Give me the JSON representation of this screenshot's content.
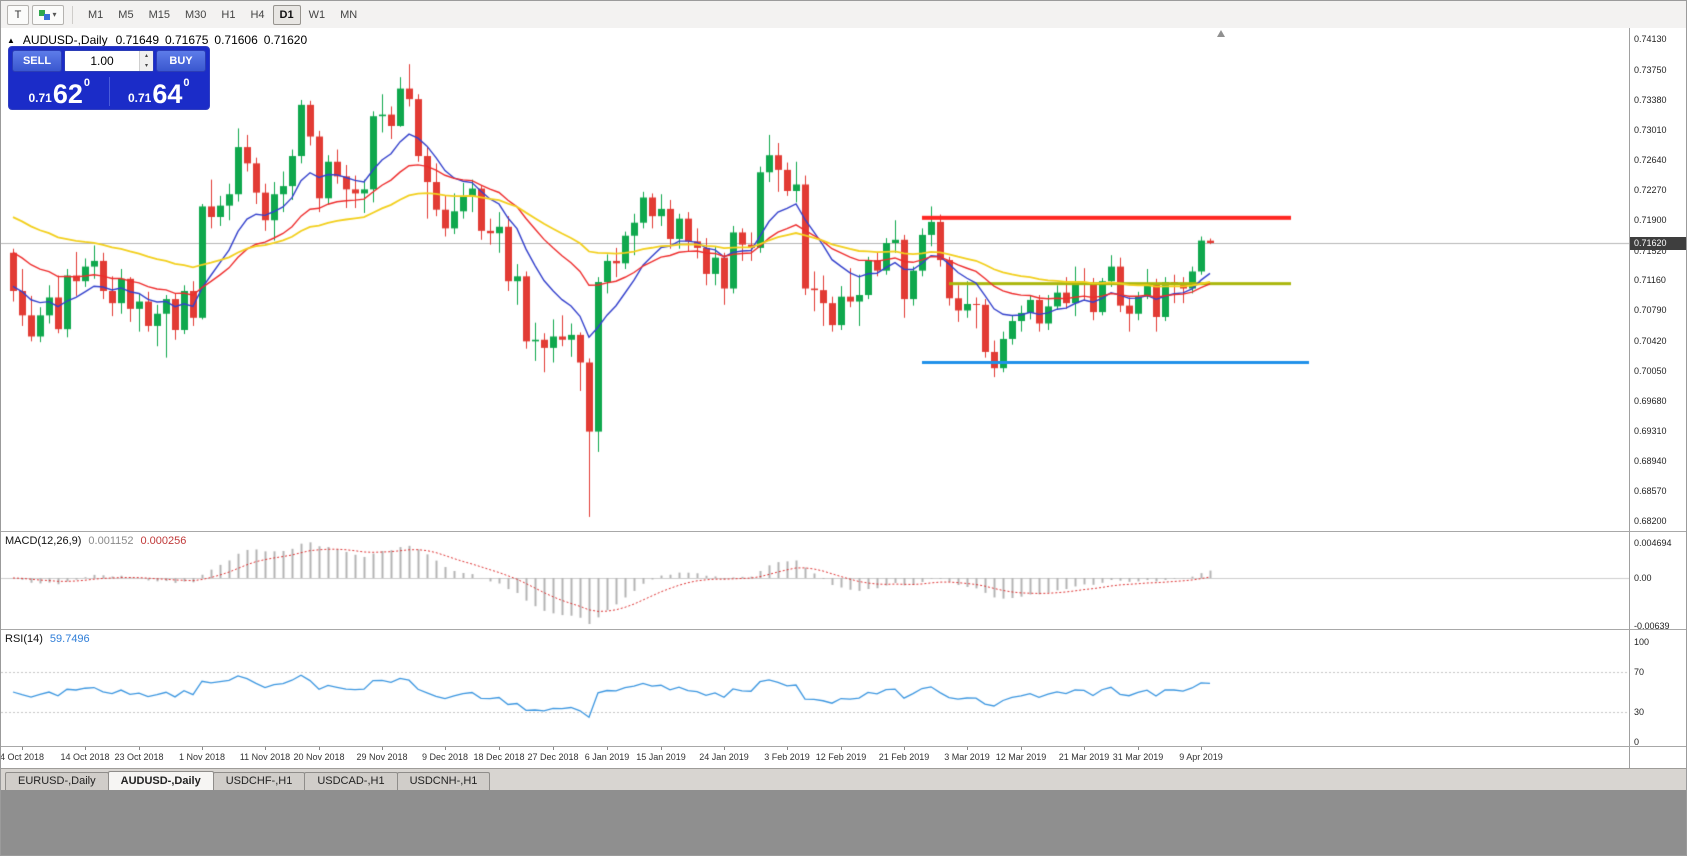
{
  "toolbar": {
    "tool_t": "T",
    "timeframes": [
      "M1",
      "M5",
      "M15",
      "M30",
      "H1",
      "H4",
      "D1",
      "W1",
      "MN"
    ],
    "active_timeframe": "D1"
  },
  "icons": {
    "dropdown": "▾",
    "toggle_up": "▲",
    "spinner_up": "▴",
    "spinner_down": "▾"
  },
  "chart_header": {
    "toggle_icon": "▲",
    "symbol": "AUDUSD-,Daily",
    "open": "0.71649",
    "high": "0.71675",
    "low": "0.71606",
    "close": "0.71620"
  },
  "trade_panel": {
    "sell_label": "SELL",
    "buy_label": "BUY",
    "volume": "1.00",
    "sell_price": {
      "figure": "0.71",
      "pips": "62",
      "point": "0"
    },
    "buy_price": {
      "figure": "0.71",
      "pips": "64",
      "point": "0"
    }
  },
  "price_axis": {
    "labels": [
      "0.74130",
      "0.73750",
      "0.73380",
      "0.73010",
      "0.72640",
      "0.72270",
      "0.71900",
      "0.71520",
      "0.71160",
      "0.70790",
      "0.70420",
      "0.70050",
      "0.69680",
      "0.69310",
      "0.68940",
      "0.68570",
      "0.68200"
    ],
    "current": "0.71620"
  },
  "indicators": {
    "macd": {
      "label": "MACD(12,26,9)",
      "value1": "0.001152",
      "value2": "0.000256",
      "fast": 12,
      "slow": 26,
      "signal": 9,
      "axis": [
        {
          "text": "0.004694",
          "value": 0.004694
        },
        {
          "text": "0.00",
          "value": 0
        },
        {
          "text": "-0.00639",
          "value": -0.00639
        }
      ]
    },
    "rsi": {
      "label": "RSI(14)",
      "value": "59.7496",
      "period": 14,
      "levels": [
        70,
        30
      ],
      "axis": [
        {
          "text": "100",
          "value": 100
        },
        {
          "text": "70",
          "value": 70
        },
        {
          "text": "30",
          "value": 30
        },
        {
          "text": "0",
          "value": 0
        }
      ]
    }
  },
  "date_axis": [
    {
      "text": "4 Oct 2018",
      "index": 1
    },
    {
      "text": "14 Oct 2018",
      "index": 8
    },
    {
      "text": "23 Oct 2018",
      "index": 14
    },
    {
      "text": "1 Nov 2018",
      "index": 21
    },
    {
      "text": "11 Nov 2018",
      "index": 28
    },
    {
      "text": "20 Nov 2018",
      "index": 34
    },
    {
      "text": "29 Nov 2018",
      "index": 41
    },
    {
      "text": "9 Dec 2018",
      "index": 48
    },
    {
      "text": "18 Dec 2018",
      "index": 54
    },
    {
      "text": "27 Dec 2018",
      "index": 60
    },
    {
      "text": "6 Jan 2019",
      "index": 66
    },
    {
      "text": "15 Jan 2019",
      "index": 72
    },
    {
      "text": "24 Jan 2019",
      "index": 79
    },
    {
      "text": "3 Feb 2019",
      "index": 86
    },
    {
      "text": "12 Feb 2019",
      "index": 92
    },
    {
      "text": "21 Feb 2019",
      "index": 99
    },
    {
      "text": "3 Mar 2019",
      "index": 106
    },
    {
      "text": "12 Mar 2019",
      "index": 112
    },
    {
      "text": "21 Mar 2019",
      "index": 119
    },
    {
      "text": "31 Mar 2019",
      "index": 125
    },
    {
      "text": "9 Apr 2019",
      "index": 132
    }
  ],
  "tabs": {
    "items": [
      "EURUSD-,Daily",
      "AUDUSD-,Daily",
      "USDCHF-,H1",
      "USDCAD-,H1",
      "USDCNH-,H1"
    ],
    "active": 1
  },
  "colors": {
    "bull": "#0fa84d",
    "bear": "#e23b34",
    "ma_fast": "#3340cc",
    "ma_mid": "#ee2c2c",
    "ma_slow": "#f2cf1d",
    "hline_red": "#ff2621",
    "hline_olive": "#aab70c",
    "hline_blue": "#2091e9",
    "macd_hist": "#b4b4b4",
    "macd_signal": "#dd3333",
    "rsi_line": "#3b96e0",
    "price_line": "#b6b6b6",
    "price_badge_bg": "#3e3e3e",
    "panel_bg": "#1b2cc8",
    "panel_button": "#4a6ae0"
  },
  "chart_data": {
    "type": "candlestick",
    "symbol": "AUDUSD",
    "timeframe": "Daily",
    "title": "AUDUSD-,Daily",
    "price_range": {
      "top": 0.7413,
      "bottom": 0.682
    },
    "current_price": 0.7162,
    "moving_averages": [
      {
        "period": 10,
        "init": 0.711,
        "color_key": "ma_fast",
        "width": 1.4
      },
      {
        "period": 22,
        "init": 0.7155,
        "color_key": "ma_mid",
        "width": 1.4
      },
      {
        "period": 45,
        "init": 0.7198,
        "color_key": "ma_slow",
        "width": 1.8
      }
    ],
    "hlines": [
      {
        "price": 0.7193,
        "from": 101,
        "to": 142,
        "width": 4,
        "color_key": "hline_red"
      },
      {
        "price": 0.7112,
        "from": 104,
        "to": 142,
        "width": 3,
        "color_key": "hline_olive"
      },
      {
        "price": 0.7015,
        "from": 101,
        "to": 144,
        "width": 3,
        "color_key": "hline_blue"
      }
    ],
    "candles": [
      [
        "2018.10.03",
        0.715,
        0.7155,
        0.709,
        0.7103
      ],
      [
        "2018.10.04",
        0.7103,
        0.713,
        0.706,
        0.7073
      ],
      [
        "2018.10.05",
        0.7073,
        0.7097,
        0.7041,
        0.7047
      ],
      [
        "2018.10.08",
        0.7047,
        0.7083,
        0.704,
        0.7073
      ],
      [
        "2018.10.09",
        0.7073,
        0.711,
        0.7063,
        0.7095
      ],
      [
        "2018.10.10",
        0.7095,
        0.7122,
        0.7051,
        0.7056
      ],
      [
        "2018.10.11",
        0.7056,
        0.713,
        0.7046,
        0.7122
      ],
      [
        "2018.10.12",
        0.7122,
        0.7151,
        0.7097,
        0.7115
      ],
      [
        "2018.10.15",
        0.7115,
        0.7143,
        0.7108,
        0.7133
      ],
      [
        "2018.10.16",
        0.7133,
        0.7159,
        0.7118,
        0.714
      ],
      [
        "2018.10.17",
        0.714,
        0.715,
        0.7093,
        0.7103
      ],
      [
        "2018.10.18",
        0.7103,
        0.7121,
        0.7072,
        0.7088
      ],
      [
        "2018.10.19",
        0.7088,
        0.713,
        0.7075,
        0.7118
      ],
      [
        "2018.10.22",
        0.7118,
        0.712,
        0.7065,
        0.7081
      ],
      [
        "2018.10.23",
        0.7081,
        0.71,
        0.7053,
        0.709
      ],
      [
        "2018.10.24",
        0.709,
        0.7102,
        0.7053,
        0.706
      ],
      [
        "2018.10.25",
        0.706,
        0.7086,
        0.7035,
        0.7075
      ],
      [
        "2018.10.26",
        0.7075,
        0.7098,
        0.7021,
        0.7093
      ],
      [
        "2018.10.29",
        0.7093,
        0.71,
        0.7043,
        0.7055
      ],
      [
        "2018.10.30",
        0.7055,
        0.711,
        0.705,
        0.7103
      ],
      [
        "2018.10.31",
        0.7103,
        0.7115,
        0.706,
        0.707
      ],
      [
        "2018.11.01",
        0.707,
        0.721,
        0.7068,
        0.7207
      ],
      [
        "2018.11.02",
        0.7207,
        0.724,
        0.718,
        0.7194
      ],
      [
        "2018.11.05",
        0.7194,
        0.722,
        0.7183,
        0.7208
      ],
      [
        "2018.11.06",
        0.7208,
        0.7235,
        0.719,
        0.7222
      ],
      [
        "2018.11.07",
        0.7222,
        0.7303,
        0.7213,
        0.728
      ],
      [
        "2018.11.08",
        0.728,
        0.7295,
        0.725,
        0.726
      ],
      [
        "2018.11.09",
        0.726,
        0.7267,
        0.721,
        0.7224
      ],
      [
        "2018.11.12",
        0.7224,
        0.7235,
        0.7177,
        0.719
      ],
      [
        "2018.11.13",
        0.719,
        0.7237,
        0.7165,
        0.7222
      ],
      [
        "2018.11.14",
        0.7222,
        0.725,
        0.72,
        0.7232
      ],
      [
        "2018.11.15",
        0.7232,
        0.7277,
        0.7215,
        0.7269
      ],
      [
        "2018.11.16",
        0.7269,
        0.7338,
        0.726,
        0.7332
      ],
      [
        "2018.11.19",
        0.7332,
        0.7337,
        0.7282,
        0.7293
      ],
      [
        "2018.11.20",
        0.7293,
        0.73,
        0.72,
        0.7217
      ],
      [
        "2018.11.21",
        0.7217,
        0.727,
        0.721,
        0.7262
      ],
      [
        "2018.11.22",
        0.7262,
        0.7277,
        0.7235,
        0.7244
      ],
      [
        "2018.11.23",
        0.7244,
        0.7258,
        0.7205,
        0.7228
      ],
      [
        "2018.11.26",
        0.7228,
        0.7245,
        0.7205,
        0.7223
      ],
      [
        "2018.11.27",
        0.7223,
        0.724,
        0.7199,
        0.7228
      ],
      [
        "2018.11.28",
        0.7228,
        0.7324,
        0.7212,
        0.7318
      ],
      [
        "2018.11.29",
        0.7318,
        0.7345,
        0.7298,
        0.732
      ],
      [
        "2018.11.30",
        0.732,
        0.733,
        0.729,
        0.7306
      ],
      [
        "2018.12.03",
        0.7306,
        0.7366,
        0.7305,
        0.7352
      ],
      [
        "2018.12.04",
        0.7352,
        0.7382,
        0.733,
        0.7339
      ],
      [
        "2018.12.05",
        0.7339,
        0.7345,
        0.7262,
        0.7269
      ],
      [
        "2018.12.06",
        0.7269,
        0.728,
        0.7192,
        0.7237
      ],
      [
        "2018.12.07",
        0.7237,
        0.726,
        0.7195,
        0.7203
      ],
      [
        "2018.12.10",
        0.7203,
        0.7221,
        0.717,
        0.718
      ],
      [
        "2018.12.11",
        0.718,
        0.7223,
        0.7173,
        0.7201
      ],
      [
        "2018.12.12",
        0.7201,
        0.7236,
        0.7192,
        0.722
      ],
      [
        "2018.12.13",
        0.722,
        0.724,
        0.72,
        0.7229
      ],
      [
        "2018.12.14",
        0.7229,
        0.7232,
        0.7166,
        0.7177
      ],
      [
        "2018.12.17",
        0.7177,
        0.7192,
        0.716,
        0.7174
      ],
      [
        "2018.12.18",
        0.7174,
        0.72,
        0.715,
        0.7182
      ],
      [
        "2018.12.19",
        0.7182,
        0.7195,
        0.7103,
        0.7115
      ],
      [
        "2018.12.20",
        0.7115,
        0.7136,
        0.7086,
        0.7121
      ],
      [
        "2018.12.21",
        0.7121,
        0.7127,
        0.7032,
        0.7041
      ],
      [
        "2018.12.24",
        0.7041,
        0.7064,
        0.7017,
        0.7043
      ],
      [
        "2018.12.26",
        0.7043,
        0.7051,
        0.7003,
        0.7033
      ],
      [
        "2018.12.27",
        0.7033,
        0.7068,
        0.7015,
        0.7047
      ],
      [
        "2018.12.28",
        0.7047,
        0.7073,
        0.7035,
        0.7043
      ],
      [
        "2018.12.31",
        0.7043,
        0.7063,
        0.7022,
        0.7049
      ],
      [
        "2019.01.02",
        0.7049,
        0.7052,
        0.698,
        0.7015
      ],
      [
        "2019.01.03",
        0.7015,
        0.702,
        0.6825,
        0.693
      ],
      [
        "2019.01.04",
        0.693,
        0.712,
        0.6905,
        0.7114
      ],
      [
        "2019.01.07",
        0.7114,
        0.7148,
        0.71,
        0.714
      ],
      [
        "2019.01.08",
        0.714,
        0.7156,
        0.712,
        0.7137
      ],
      [
        "2019.01.09",
        0.7137,
        0.7176,
        0.713,
        0.7171
      ],
      [
        "2019.01.10",
        0.7171,
        0.7198,
        0.7147,
        0.7187
      ],
      [
        "2019.01.11",
        0.7187,
        0.7225,
        0.718,
        0.7218
      ],
      [
        "2019.01.14",
        0.7218,
        0.7223,
        0.718,
        0.7195
      ],
      [
        "2019.01.15",
        0.7195,
        0.7222,
        0.7183,
        0.7204
      ],
      [
        "2019.01.16",
        0.7204,
        0.7215,
        0.7155,
        0.7167
      ],
      [
        "2019.01.17",
        0.7167,
        0.7198,
        0.7155,
        0.7192
      ],
      [
        "2019.01.18",
        0.7192,
        0.72,
        0.7152,
        0.7164
      ],
      [
        "2019.01.21",
        0.7164,
        0.718,
        0.7143,
        0.7156
      ],
      [
        "2019.01.22",
        0.7156,
        0.7168,
        0.711,
        0.7124
      ],
      [
        "2019.01.23",
        0.7124,
        0.7157,
        0.711,
        0.7144
      ],
      [
        "2019.01.24",
        0.7144,
        0.715,
        0.7086,
        0.7106
      ],
      [
        "2019.01.25",
        0.7106,
        0.7183,
        0.71,
        0.7175
      ],
      [
        "2019.01.28",
        0.7175,
        0.718,
        0.714,
        0.716
      ],
      [
        "2019.01.29",
        0.716,
        0.7175,
        0.714,
        0.7156
      ],
      [
        "2019.01.30",
        0.7156,
        0.7256,
        0.715,
        0.7249
      ],
      [
        "2019.01.31",
        0.7249,
        0.7295,
        0.7237,
        0.727
      ],
      [
        "2019.02.01",
        0.727,
        0.7285,
        0.7225,
        0.7252
      ],
      [
        "2019.02.04",
        0.7252,
        0.7261,
        0.722,
        0.7226
      ],
      [
        "2019.02.05",
        0.7226,
        0.7262,
        0.7212,
        0.7234
      ],
      [
        "2019.02.06",
        0.7234,
        0.7245,
        0.7098,
        0.7106
      ],
      [
        "2019.02.07",
        0.7106,
        0.7127,
        0.7078,
        0.7104
      ],
      [
        "2019.02.08",
        0.7104,
        0.7122,
        0.706,
        0.7088
      ],
      [
        "2019.02.11",
        0.7088,
        0.7096,
        0.7053,
        0.7061
      ],
      [
        "2019.02.12",
        0.7061,
        0.7109,
        0.7055,
        0.7096
      ],
      [
        "2019.02.13",
        0.7096,
        0.7131,
        0.7083,
        0.709
      ],
      [
        "2019.02.14",
        0.709,
        0.7123,
        0.706,
        0.7098
      ],
      [
        "2019.02.15",
        0.7098,
        0.7145,
        0.7093,
        0.7141
      ],
      [
        "2019.02.18",
        0.7141,
        0.7151,
        0.7121,
        0.7128
      ],
      [
        "2019.02.19",
        0.7128,
        0.7168,
        0.7123,
        0.7162
      ],
      [
        "2019.02.20",
        0.7162,
        0.719,
        0.715,
        0.7166
      ],
      [
        "2019.02.21",
        0.7166,
        0.7172,
        0.707,
        0.7093
      ],
      [
        "2019.02.22",
        0.7093,
        0.7133,
        0.7085,
        0.7128
      ],
      [
        "2019.02.25",
        0.7128,
        0.718,
        0.7121,
        0.7172
      ],
      [
        "2019.02.26",
        0.7172,
        0.7207,
        0.7158,
        0.7188
      ],
      [
        "2019.02.27",
        0.7188,
        0.7197,
        0.7133,
        0.7141
      ],
      [
        "2019.02.28",
        0.7141,
        0.7145,
        0.7085,
        0.7094
      ],
      [
        "2019.03.01",
        0.7094,
        0.711,
        0.7065,
        0.7079
      ],
      [
        "2019.03.04",
        0.7079,
        0.7115,
        0.707,
        0.7087
      ],
      [
        "2019.03.05",
        0.7087,
        0.7095,
        0.7057,
        0.7086
      ],
      [
        "2019.03.06",
        0.7086,
        0.7093,
        0.7021,
        0.7028
      ],
      [
        "2019.03.07",
        0.7028,
        0.7042,
        0.6997,
        0.7008
      ],
      [
        "2019.03.08",
        0.7008,
        0.7053,
        0.7003,
        0.7044
      ],
      [
        "2019.03.11",
        0.7044,
        0.7073,
        0.7037,
        0.7066
      ],
      [
        "2019.03.12",
        0.7066,
        0.7085,
        0.7053,
        0.7076
      ],
      [
        "2019.03.13",
        0.7076,
        0.7098,
        0.7068,
        0.7092
      ],
      [
        "2019.03.14",
        0.7092,
        0.7098,
        0.7053,
        0.7063
      ],
      [
        "2019.03.15",
        0.7063,
        0.7098,
        0.7055,
        0.7084
      ],
      [
        "2019.03.18",
        0.7084,
        0.711,
        0.708,
        0.7101
      ],
      [
        "2019.03.19",
        0.7101,
        0.712,
        0.7081,
        0.7088
      ],
      [
        "2019.03.20",
        0.7088,
        0.7133,
        0.7072,
        0.7113
      ],
      [
        "2019.03.21",
        0.7113,
        0.7131,
        0.7092,
        0.7111
      ],
      [
        "2019.03.22",
        0.7111,
        0.7119,
        0.7067,
        0.7077
      ],
      [
        "2019.03.25",
        0.7077,
        0.7119,
        0.7073,
        0.7115
      ],
      [
        "2019.03.26",
        0.7115,
        0.7147,
        0.7108,
        0.7133
      ],
      [
        "2019.03.27",
        0.7133,
        0.7144,
        0.7077,
        0.7085
      ],
      [
        "2019.03.28",
        0.7085,
        0.7095,
        0.7053,
        0.7075
      ],
      [
        "2019.03.29",
        0.7075,
        0.7102,
        0.7067,
        0.7096
      ],
      [
        "2019.04.01",
        0.7096,
        0.713,
        0.7093,
        0.7112
      ],
      [
        "2019.04.02",
        0.7112,
        0.7118,
        0.7053,
        0.7071
      ],
      [
        "2019.04.03",
        0.7071,
        0.712,
        0.7066,
        0.7114
      ],
      [
        "2019.04.04",
        0.7114,
        0.7123,
        0.7088,
        0.7113
      ],
      [
        "2019.04.05",
        0.7113,
        0.712,
        0.7088,
        0.7106
      ],
      [
        "2019.04.08",
        0.7106,
        0.7133,
        0.71,
        0.7127
      ],
      [
        "2019.04.09",
        0.7127,
        0.717,
        0.7123,
        0.7165
      ],
      [
        "2019.04.10",
        0.71649,
        0.71675,
        0.71606,
        0.7162
      ]
    ]
  }
}
